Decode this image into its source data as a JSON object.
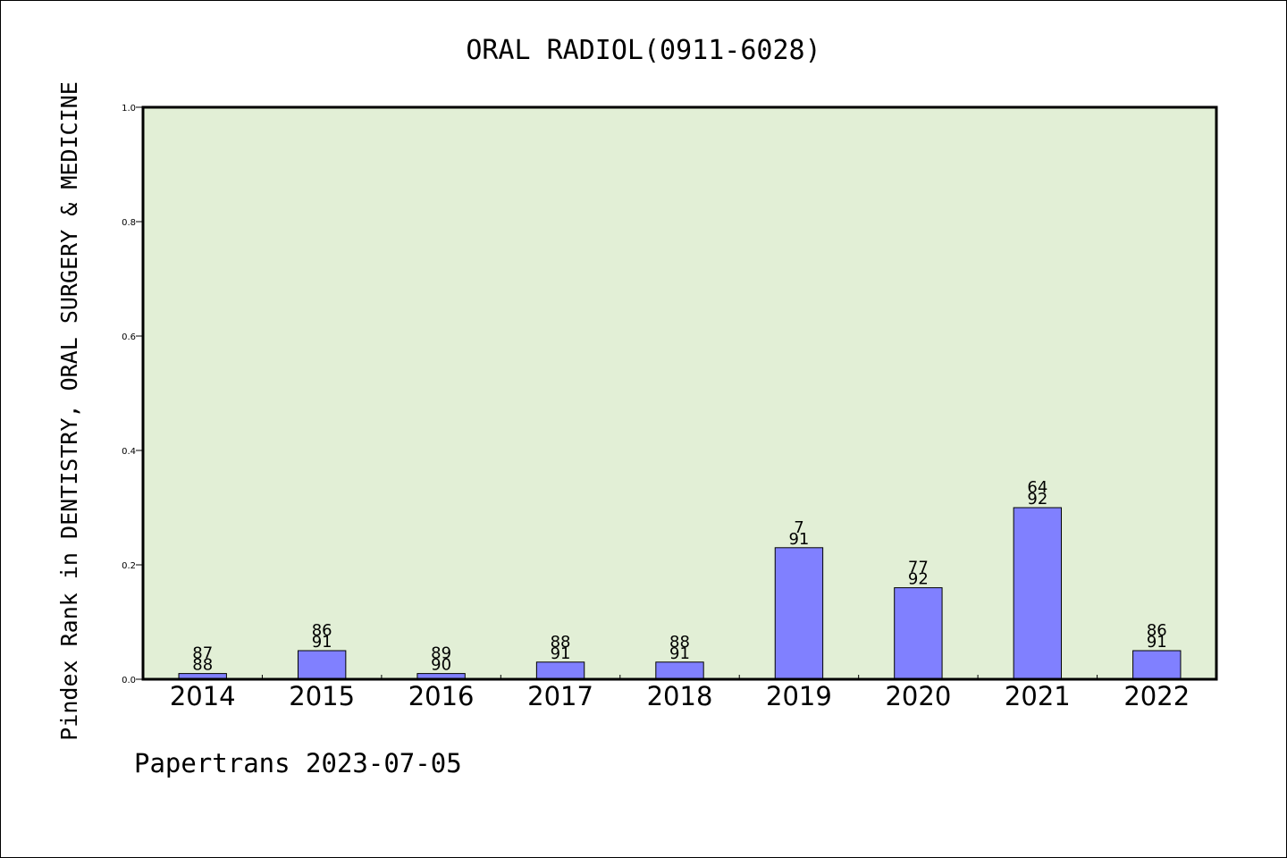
{
  "chart_data": {
    "type": "bar",
    "title": "ORAL RADIOL(0911-6028)",
    "ylabel": "Pindex Rank in DENTISTRY, ORAL SURGERY & MEDICINE",
    "xlabel": "",
    "categories": [
      "2014",
      "2015",
      "2016",
      "2017",
      "2018",
      "2019",
      "2020",
      "2021",
      "2022"
    ],
    "values": [
      0.01,
      0.05,
      0.01,
      0.03,
      0.03,
      0.23,
      0.16,
      0.3,
      0.05
    ],
    "bar_labels_top": [
      "87",
      "86",
      "89",
      "88",
      "88",
      "7",
      "77",
      "64",
      "86"
    ],
    "bar_labels_bottom": [
      "88",
      "91",
      "90",
      "91",
      "91",
      "91",
      "92",
      "92",
      "91"
    ],
    "ylim": [
      0,
      1.0
    ],
    "yticks": [
      "0.0",
      "0.2",
      "0.4",
      "0.6",
      "0.8",
      "1.0"
    ],
    "grid": false,
    "plot_background": "#e2efd6",
    "bar_color": "#8080ff",
    "footer": "Papertrans 2023-07-05"
  }
}
